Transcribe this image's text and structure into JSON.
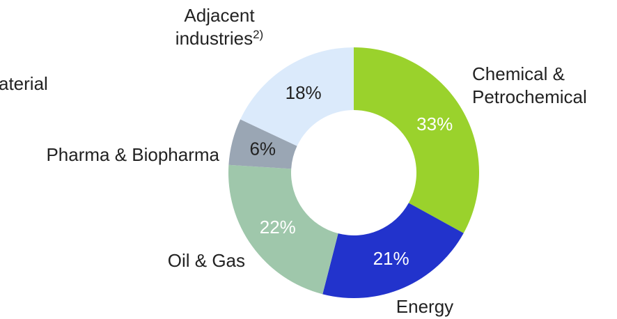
{
  "chart_data": {
    "type": "donut",
    "categories": [
      "Chemical & Petrochemical",
      "Energy",
      "Oil & Gas",
      "Pharma & Biopharma",
      "Adjacent industries"
    ],
    "category_notes": [
      null,
      null,
      null,
      null,
      "2)"
    ],
    "values": [
      33,
      21,
      22,
      6,
      18
    ],
    "value_labels": [
      "33%",
      "21%",
      "22%",
      "6%",
      "18%"
    ],
    "colors": [
      "#9ad22c",
      "#2233cc",
      "#9fc7ab",
      "#9aa6b4",
      "#dbeafb"
    ],
    "value_label_colors": [
      "#ffffff",
      "#ffffff",
      "#ffffff",
      "#222222",
      "#222222"
    ],
    "annotations": [
      "aterial"
    ]
  }
}
